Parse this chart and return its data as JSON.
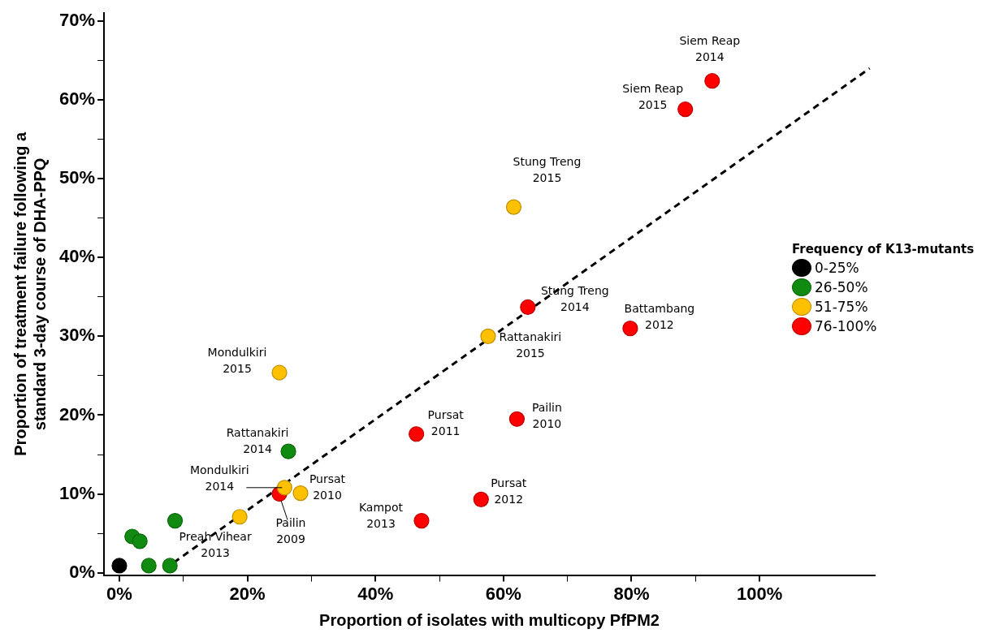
{
  "chart_data": {
    "type": "scatter",
    "xlabel": "Proportion of isolates with multicopy PfPM2",
    "ylabel": "Proportion of treatment failure following a standard 3-day course of DHA-PPQ",
    "legend_title": "Frequency of K13-mutants",
    "legend": "right",
    "marker": "circle",
    "grid": false,
    "xlim": [
      -2.4,
      118
    ],
    "ylim": [
      -0.3,
      71
    ],
    "xticks": [
      {
        "value": 0,
        "label": "0%"
      },
      {
        "value": 10,
        "label": null
      },
      {
        "value": 20,
        "label": "20%"
      },
      {
        "value": 30,
        "label": null
      },
      {
        "value": 40,
        "label": "40%"
      },
      {
        "value": 50,
        "label": null
      },
      {
        "value": 60,
        "label": "60%"
      },
      {
        "value": 70,
        "label": null
      },
      {
        "value": 80,
        "label": "80%"
      },
      {
        "value": 90,
        "label": null
      },
      {
        "value": 100,
        "label": "100%"
      }
    ],
    "yticks": [
      {
        "value": 0,
        "label": "0%"
      },
      {
        "value": 5,
        "label": null
      },
      {
        "value": 10,
        "label": "10%"
      },
      {
        "value": 15,
        "label": null
      },
      {
        "value": 20,
        "label": "20%"
      },
      {
        "value": 25,
        "label": null
      },
      {
        "value": 30,
        "label": "30%"
      },
      {
        "value": 35,
        "label": null
      },
      {
        "value": 40,
        "label": "40%"
      },
      {
        "value": 45,
        "label": null
      },
      {
        "value": 50,
        "label": "50%"
      },
      {
        "value": 55,
        "label": null
      },
      {
        "value": 60,
        "label": "60%"
      },
      {
        "value": 65,
        "label": null
      },
      {
        "value": 70,
        "label": "70%"
      }
    ],
    "series": [
      {
        "name": "0-25%",
        "color": "#000000",
        "x": [
          0
        ],
        "values": [
          0.9
        ]
      },
      {
        "name": "26-50%",
        "color": "#108a10",
        "x": [
          2.0,
          3.2,
          4.6,
          7.9,
          8.7,
          26.4
        ],
        "values": [
          4.6,
          4.0,
          0.9,
          0.9,
          6.6,
          15.4
        ]
      },
      {
        "name": "51-75%",
        "color": "#ffc000",
        "x": [
          25.0,
          61.6,
          57.6,
          25.8,
          28.3,
          18.8
        ],
        "values": [
          25.4,
          46.4,
          30.0,
          10.8,
          10.1,
          7.1
        ]
      },
      {
        "name": "76-100%",
        "color": "#ff0000",
        "x": [
          92.6,
          88.4,
          63.8,
          79.8,
          46.4,
          62.1,
          25.0,
          47.2,
          56.5
        ],
        "values": [
          62.4,
          58.8,
          33.7,
          31.0,
          17.6,
          19.5,
          10.0,
          6.6,
          9.3
        ]
      },
      {
        "type": "line",
        "color": "#000000",
        "line_style": "dashed",
        "marker": "none",
        "x": [
          8.5,
          117.2
        ],
        "values": [
          1.3,
          64.0
        ]
      }
    ],
    "annotations": [
      {
        "text": "Siem Reap\n2014",
        "x": 92.6,
        "y": 62.4
      },
      {
        "text": "Siem Reap\n2015",
        "x": 88.4,
        "y": 58.8
      },
      {
        "text": "Stung Treng\n2015",
        "x": 61.6,
        "y": 46.4
      },
      {
        "text": "Stung Treng\n2014",
        "x": 63.8,
        "y": 33.7
      },
      {
        "text": "Battambang\n2012",
        "x": 79.8,
        "y": 31.0
      },
      {
        "text": "Rattanakiri\n2015",
        "x": 57.6,
        "y": 30.0
      },
      {
        "text": "Mondulkiri\n2015",
        "x": 25.0,
        "y": 25.4
      },
      {
        "text": "Pursat\n2011",
        "x": 46.4,
        "y": 17.6
      },
      {
        "text": "Pailin\n2010",
        "x": 62.1,
        "y": 19.5
      },
      {
        "text": "Rattanakiri\n2014",
        "x": 26.4,
        "y": 15.4
      },
      {
        "text": "Mondulkiri\n2014",
        "x": 25.8,
        "y": 10.8
      },
      {
        "text": "Pursat\n2010",
        "x": 28.3,
        "y": 10.1
      },
      {
        "text": "Pailin\n2009",
        "x": 25.0,
        "y": 10.0
      },
      {
        "text": "Preah Vihear\n2013",
        "x": 18.8,
        "y": 7.1
      },
      {
        "text": "Kampot\n2013",
        "x": 47.2,
        "y": 6.6
      },
      {
        "text": "Pursat\n2012",
        "x": 56.5,
        "y": 9.3
      }
    ]
  }
}
